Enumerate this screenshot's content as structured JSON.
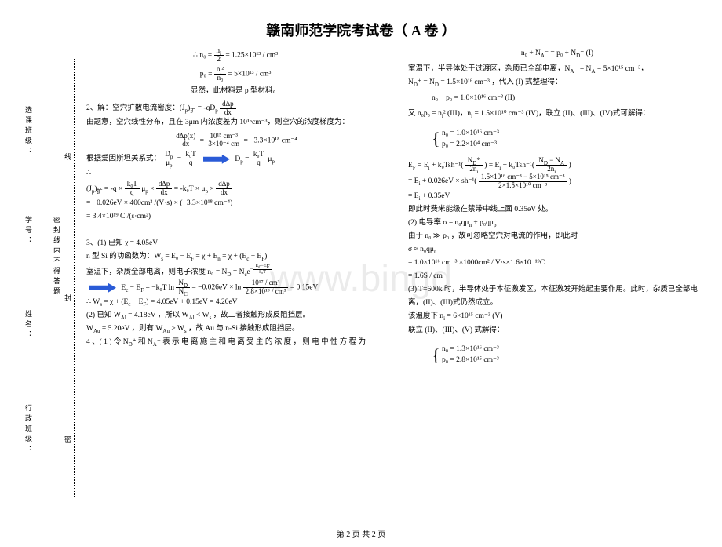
{
  "title": "赣南师范学院考试卷（ A 卷 ）",
  "watermark": "www.bingd",
  "sidebar": {
    "labels": [
      "行政班级：",
      "姓名：",
      "学号：",
      "选课班级："
    ],
    "seal": "密封线内不得答题",
    "dash": "————————",
    "seal_marks": [
      "密",
      "封",
      "线"
    ]
  },
  "left": {
    "l1a": "∴ n₀ = ",
    "l1_frac_n": "n<sub>i</sub>",
    "l1_frac_d": "2",
    "l1b": " = 1.25×10¹³ / cm³",
    "l2a": "p₀ = ",
    "l2_n": "n<sub>i</sub>²",
    "l2_d": "n₀",
    "l2b": " = 5×10¹³ / cm³",
    "l3": "显然，此材料是 p 型材料。",
    "l4": "2、解：空穴扩散电流密度：(J<sub>p</sub>)<sub>扩</sub> = -qD<sub>p</sub>",
    "l4_n": "d∆p",
    "l4_d": "dx",
    "l5": "由题意，空穴线性分布，且在 3μm 内浓度差为 10¹⁵cm⁻³，则空穴的浓度梯度为：",
    "l6_n1": "d∆p(x)",
    "l6_d1": "dx",
    "l6_mid": " = ",
    "l6_n2": "10¹⁵ cm⁻³",
    "l6_d2": "3×10⁻⁴ cm",
    "l6_end": " = −3.3×10¹⁸ cm⁻⁴",
    "l7a": "根据爱因斯坦关系式：",
    "l7_n1": "D<sub>p</sub>",
    "l7_d1": "μ<sub>p</sub>",
    "l7_eq": " = ",
    "l7_n2": "k₀T",
    "l7_d2": "q",
    "l7b": "D<sub>p</sub> = ",
    "l7_n3": "k₀T",
    "l7_d3": "q",
    "l7c": " μ<sub>p</sub>",
    "l8": "∴",
    "l9": "(J<sub>p</sub>)<sub>扩</sub> = -q × ",
    "l9_n": "k₀T",
    "l9_d": "q",
    "l9b": " μ<sub>p</sub> × ",
    "l9_n2": "d∆p",
    "l9_d2": "dx",
    "l9c": " = -k₀T × μ<sub>p</sub> × ",
    "l9_n3": "d∆p",
    "l9_d3": "dx",
    "l10": "= −0.026eV × 400cm² /(V·s) × (−3.3×10¹⁸ cm⁻⁴)",
    "l11": "= 3.4×10¹⁹ C /(s·cm²)",
    "l12": "3、(1) 已知 χ = 4.05eV",
    "l13": "n 型 Si 的功函数为：W<sub>s</sub> = E₀ − E<sub>F</sub> = χ + E<sub>n</sub> = χ + (E<sub>c</sub> − E<sub>F</sub>)",
    "l14": "室温下，杂质全部电离，则电子浓度 n₀ = N<sub>D</sub> = N<sub>c</sub>e",
    "l14_exp_n": "E<sub>c</sub>−E<sub>F</sub>",
    "l14_exp_d": "k₀T",
    "l15a": "E<sub>c</sub> − E<sub>F</sub> = −k₀T ln ",
    "l15_n": "N<sub>D</sub>",
    "l15_d": "N<sub>C</sub>",
    "l15b": " = −0.026eV × ln ",
    "l15_n2": "10¹⁷ / cm³",
    "l15_d2": "2.8×10¹⁹ / cm³",
    "l15c": " = 0.15eV",
    "l16": "∴ W<sub>s</sub> = χ + (E<sub>c</sub> − E<sub>F</sub>) = 4.05eV + 0.15eV = 4.20eV",
    "l17": "(2) 已知 W<sub>Al</sub> = 4.18eV ，所以 W<sub>Al</sub> < W<sub>s</sub> ，故二者接触形成反阻挡层。",
    "l18": "W<sub>Au</sub> = 5.20eV ，则有 W<sub>Au</sub> > W<sub>s</sub> ，故 Au 与 n-Si 接触形成阻挡层。",
    "l19": "4 、( 1 )  令 N<sub>D</sub>⁺ 和 N<sub>A</sub>⁻ 表 示 电 离 施 主 和 电 离 受 主 的 浓 度 ， 则 电 中 性 方 程 为"
  },
  "right": {
    "r1": "n₀ + N<sub>A</sub>⁻ = p₀ + N<sub>D</sub>⁺        (I)",
    "r2": "室温下，半导体处于过渡区，杂质已全部电离，N<sub>A</sub>⁻ = N<sub>A</sub> = 5×10¹⁵ cm⁻³，",
    "r3": "N<sub>D</sub>⁺ = N<sub>D</sub> = 1.5×10¹⁶ cm⁻³ ，代入 (I) 式整理得：",
    "r4": "n₀ − p₀ = 1.0×10¹⁶ cm⁻³        (II)",
    "r5": "又 n₀p₀ = n<sub>i</sub>²  (III)，n<sub>i</sub> = 1.5×10¹⁰ cm⁻³ (IV)，联立 (II)、(III)、(IV)式可解得：",
    "r6a": "n₀ = 1.0×10¹⁶ cm⁻³",
    "r6b": "p₀ = 2.2×10⁴ cm⁻³",
    "r7a": "E<sub>F</sub> = E<sub>i</sub> + k₀Tsh⁻¹(",
    "r7_n": "N<sub>D</sub>*",
    "r7_d": "2n<sub>i</sub>",
    "r7b": ") = E<sub>i</sub> + k₀Tsh⁻¹(",
    "r7_n2": "N<sub>D</sub> − N<sub>A</sub>",
    "r7_d2": "2n<sub>i</sub>",
    "r7c": ")",
    "r8a": "= E<sub>i</sub> + 0.026eV × sh⁻¹(",
    "r8_n": "1.5×10¹⁶ cm⁻³ − 5×10¹⁵ cm⁻³",
    "r8_d": "2×1.5×10¹⁰ cm⁻³",
    "r8b": ")",
    "r9": "= E<sub>i</sub> + 0.35eV",
    "r10": "即此时费米能级在禁带中线上面 0.35eV 处。",
    "r11": "(2) 电导率 σ = n₀qμ<sub>n</sub> + p₀qμ<sub>p</sub>",
    "r12": "由于 n₀ ≫ p₀ ，故可忽略空穴对电流的作用，即此时",
    "r13": "σ ≈ n₀qμ<sub>n</sub>",
    "r14": "= 1.0×10¹⁶ cm⁻³ ×1000cm² / V·s×1.6×10⁻¹⁹C",
    "r15": "= 1.6S / cm",
    "r16": "(3) T=600k 时，半导体处于本征激发区，本征激发开始起主要作用。此时，杂质已全部电离，(II)、(III)式仍然成立。",
    "r17": "该温度下  n<sub>i</sub> = 6×10¹⁵ cm⁻³  (V)",
    "r18": "联立 (II)、(III)、(V) 式解得：",
    "r19a": "n₀ = 1.3×10¹⁶ cm⁻³",
    "r19b": "p₀ = 2.8×10¹⁵ cm⁻³"
  },
  "footer": "第 2 页   共 2 页"
}
